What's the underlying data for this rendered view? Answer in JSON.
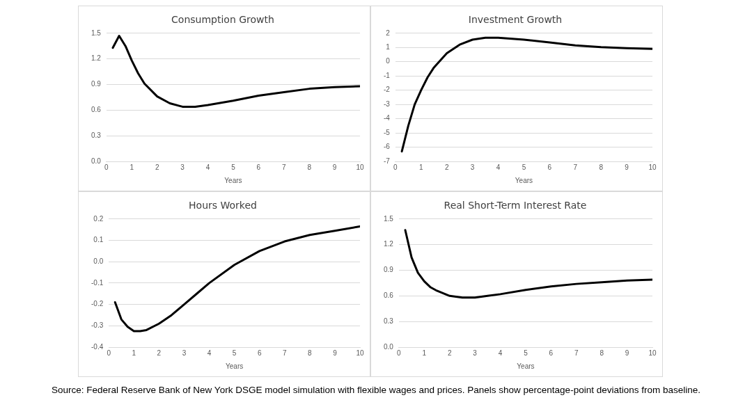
{
  "chart_data": [
    {
      "type": "line",
      "title": "Consumption Growth",
      "xlabel": "Years",
      "x": [
        0.25,
        0.5,
        0.75,
        1,
        1.25,
        1.5,
        2,
        2.5,
        3,
        3.5,
        4,
        5,
        6,
        7,
        8,
        9,
        10
      ],
      "series": [
        {
          "color": "#000000",
          "values": [
            1.33,
            1.47,
            1.35,
            1.18,
            1.03,
            0.91,
            0.76,
            0.68,
            0.64,
            0.64,
            0.66,
            0.71,
            0.77,
            0.81,
            0.85,
            0.87,
            0.88
          ]
        }
      ],
      "xlim": [
        0,
        10
      ],
      "xticks": [
        0,
        1,
        2,
        3,
        4,
        5,
        6,
        7,
        8,
        9,
        10
      ],
      "ylim": [
        0,
        1.5
      ],
      "yticks": [
        {
          "value": 0,
          "label": "0.0"
        },
        {
          "value": 0.3,
          "label": "0.3"
        },
        {
          "value": 0.6,
          "label": "0.6"
        },
        {
          "value": 0.9,
          "label": "0.9"
        },
        {
          "value": 1.2,
          "label": "1.2"
        },
        {
          "value": 1.5,
          "label": "1.5"
        }
      ],
      "grid": "y",
      "legend": false,
      "marker": "none",
      "line_style": "solid"
    },
    {
      "type": "line",
      "title": "Investment Growth",
      "xlabel": "Years",
      "x": [
        0.25,
        0.5,
        0.75,
        1,
        1.25,
        1.5,
        2,
        2.5,
        3,
        3.5,
        4,
        5,
        6,
        7,
        8,
        9,
        10
      ],
      "series": [
        {
          "color": "#000000",
          "values": [
            -6.3,
            -4.5,
            -3.0,
            -2.0,
            -1.1,
            -0.4,
            0.6,
            1.2,
            1.55,
            1.68,
            1.68,
            1.55,
            1.35,
            1.15,
            1.03,
            0.95,
            0.9
          ]
        }
      ],
      "xlim": [
        0,
        10
      ],
      "xticks": [
        0,
        1,
        2,
        3,
        4,
        5,
        6,
        7,
        8,
        9,
        10
      ],
      "ylim": [
        -7,
        2
      ],
      "yticks": [
        -7,
        -6,
        -5,
        -4,
        -3,
        -2,
        -1,
        0,
        1,
        2
      ],
      "grid": "y",
      "legend": false,
      "marker": "none",
      "line_style": "solid"
    },
    {
      "type": "line",
      "title": "Hours Worked",
      "xlabel": "Years",
      "x": [
        0.25,
        0.5,
        0.75,
        1,
        1.25,
        1.5,
        2,
        2.5,
        3,
        3.5,
        4,
        5,
        6,
        7,
        8,
        9,
        10
      ],
      "series": [
        {
          "color": "#000000",
          "values": [
            -0.19,
            -0.27,
            -0.305,
            -0.325,
            -0.325,
            -0.32,
            -0.29,
            -0.25,
            -0.2,
            -0.15,
            -0.1,
            -0.015,
            0.05,
            0.095,
            0.125,
            0.145,
            0.165
          ]
        }
      ],
      "xlim": [
        0,
        10
      ],
      "xticks": [
        0,
        1,
        2,
        3,
        4,
        5,
        6,
        7,
        8,
        9,
        10
      ],
      "ylim": [
        -0.4,
        0.2
      ],
      "yticks": [
        {
          "value": -0.4,
          "label": "-0.4"
        },
        {
          "value": -0.3,
          "label": "-0.3"
        },
        {
          "value": -0.2,
          "label": "-0.2"
        },
        {
          "value": -0.1,
          "label": "-0.1"
        },
        {
          "value": 0,
          "label": "0.0"
        },
        {
          "value": 0.1,
          "label": "0.1"
        },
        {
          "value": 0.2,
          "label": "0.2"
        }
      ],
      "grid": "y",
      "legend": false,
      "marker": "none",
      "line_style": "solid"
    },
    {
      "type": "line",
      "title": "Real Short-Term Interest Rate",
      "xlabel": "Years",
      "x": [
        0.25,
        0.5,
        0.75,
        1,
        1.25,
        1.5,
        2,
        2.5,
        3,
        3.5,
        4,
        5,
        6,
        7,
        8,
        9,
        10
      ],
      "series": [
        {
          "color": "#000000",
          "values": [
            1.37,
            1.05,
            0.87,
            0.77,
            0.7,
            0.66,
            0.6,
            0.58,
            0.58,
            0.6,
            0.62,
            0.67,
            0.71,
            0.74,
            0.76,
            0.78,
            0.79
          ]
        }
      ],
      "xlim": [
        0,
        10
      ],
      "xticks": [
        0,
        1,
        2,
        3,
        4,
        5,
        6,
        7,
        8,
        9,
        10
      ],
      "ylim": [
        0,
        1.5
      ],
      "yticks": [
        {
          "value": 0,
          "label": "0.0"
        },
        {
          "value": 0.3,
          "label": "0.3"
        },
        {
          "value": 0.6,
          "label": "0.6"
        },
        {
          "value": 0.9,
          "label": "0.9"
        },
        {
          "value": 1.2,
          "label": "1.2"
        },
        {
          "value": 1.5,
          "label": "1.5"
        }
      ],
      "grid": "y",
      "legend": false,
      "marker": "none",
      "line_style": "solid",
      "annotations": [
        "Source: Federal Reserve Bank of New York DSGE model simulation with flexible wages and prices. Panels show percentage-point deviations from baseline."
      ]
    }
  ]
}
